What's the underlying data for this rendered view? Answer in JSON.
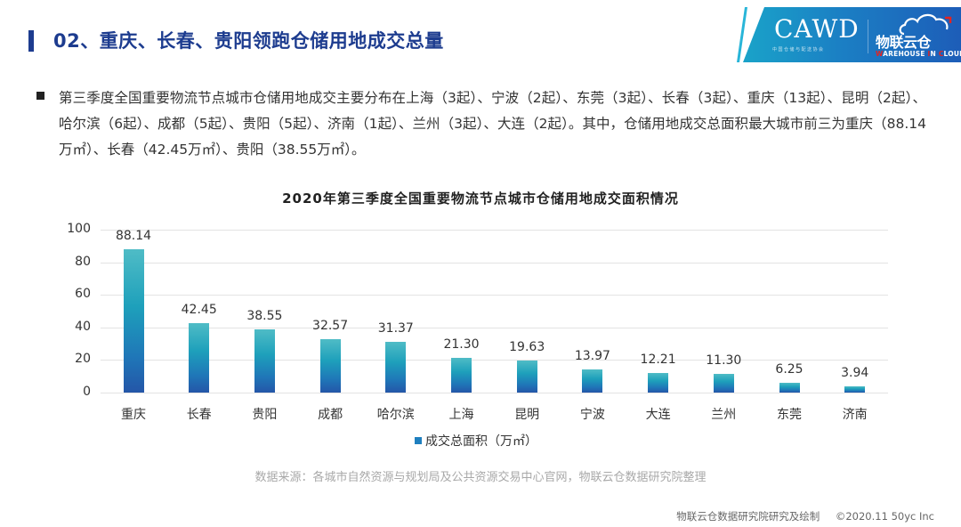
{
  "header": {
    "title": "02、重庆、长春、贵阳领跑仓储用地成交总量",
    "logo_cawd": "CAWD",
    "logo_cawd_sub": "中国仓储与配送协会",
    "logo_wic_name": "物联云仓",
    "logo_wic_en": {
      "w": "W",
      "arehouse": "AREHOUSE ",
      "i": "I",
      "n": "N ",
      "c": "C",
      "loud": "LOUD"
    }
  },
  "paragraph": {
    "text": "第三季度全国重要物流节点城市仓储用地成交主要分布在上海（3起）、宁波（2起）、东莞（3起）、长春（3起）、重庆（13起）、昆明（2起）、哈尔滨（6起）、成都（5起）、贵阳（5起）、济南（1起）、兰州（3起）、大连（2起）。其中，仓储用地成交总面积最大城市前三为重庆（88.14万㎡）、长春（42.45万㎡）、贵阳（38.55万㎡）。"
  },
  "chart_data": {
    "type": "bar",
    "title": "2020年第三季度全国重要物流节点城市仓储用地成交面积情况",
    "xlabel": "",
    "ylabel": "",
    "categories": [
      "重庆",
      "长春",
      "贵阳",
      "成都",
      "哈尔滨",
      "上海",
      "昆明",
      "宁波",
      "大连",
      "兰州",
      "东莞",
      "济南"
    ],
    "values": [
      88.14,
      42.45,
      38.55,
      32.57,
      31.37,
      21.3,
      19.63,
      13.97,
      12.21,
      11.3,
      6.25,
      3.94
    ],
    "value_labels": [
      "88.14",
      "42.45",
      "38.55",
      "32.57",
      "31.37",
      "21.30",
      "19.63",
      "13.97",
      "12.21",
      "11.30",
      "6.25",
      "3.94"
    ],
    "series": [
      {
        "name": "成交总面积（万㎡）",
        "values": [
          88.14,
          42.45,
          38.55,
          32.57,
          31.37,
          21.3,
          19.63,
          13.97,
          12.21,
          11.3,
          6.25,
          3.94
        ]
      }
    ],
    "ylim": [
      0,
      100
    ],
    "yticks": [
      0,
      20,
      40,
      60,
      80,
      100
    ],
    "grid": true,
    "legend_position": "bottom",
    "bar_color_top": "#4fbcc6",
    "bar_color_bottom": "#2456a8"
  },
  "legend": {
    "label": "成交总面积（万㎡）"
  },
  "source": "数据来源：各城市自然资源与规划局及公共资源交易中心官网，物联云仓数据研究院整理",
  "footer": {
    "credit": "物联云仓数据研究院研究及绘制",
    "copyright": "©2020.11 50yc Inc"
  },
  "colors": {
    "title": "#1d3c8f",
    "accent_red": "#e52320"
  }
}
